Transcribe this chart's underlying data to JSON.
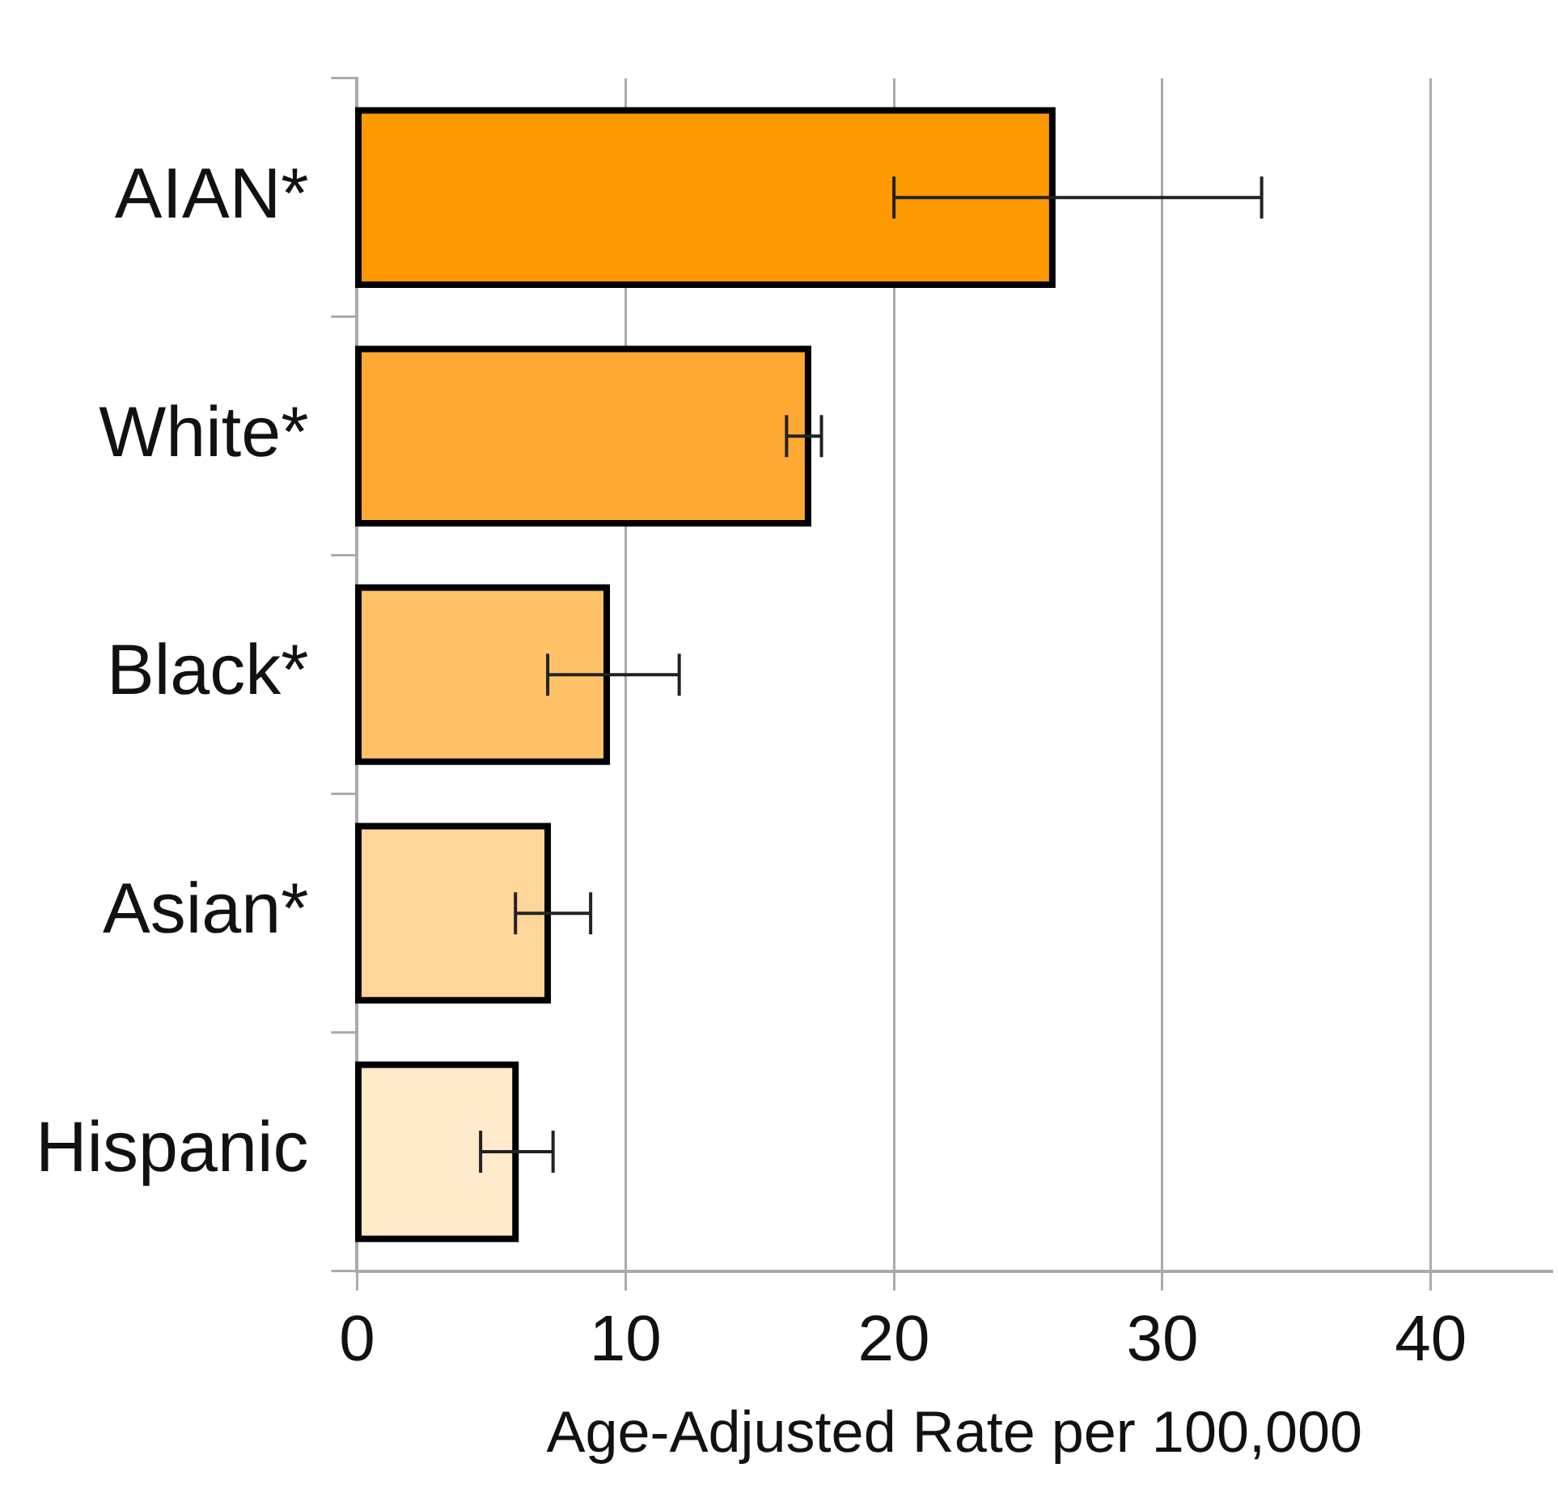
{
  "chart_data": {
    "type": "bar",
    "orientation": "horizontal",
    "categories": [
      "AIAN*",
      "White*",
      "Black*",
      "Asian*",
      "Hispanic"
    ],
    "values": [
      25.9,
      16.8,
      9.3,
      7.1,
      5.9
    ],
    "colors": [
      "#ff9900",
      "#ffa833",
      "#ffc266",
      "#ffd699",
      "#ffebcc"
    ],
    "errors": [
      [
        20.0,
        33.7
      ],
      [
        16.0,
        17.3
      ],
      [
        7.1,
        12.0
      ],
      [
        5.9,
        8.7
      ],
      [
        4.6,
        7.3
      ]
    ],
    "xlabel": "Age-Adjusted Rate per 100,000",
    "xlim": [
      0,
      44.5
    ],
    "xticks": [
      0,
      10,
      20,
      30,
      40
    ],
    "grid": "x",
    "legend": false
  }
}
